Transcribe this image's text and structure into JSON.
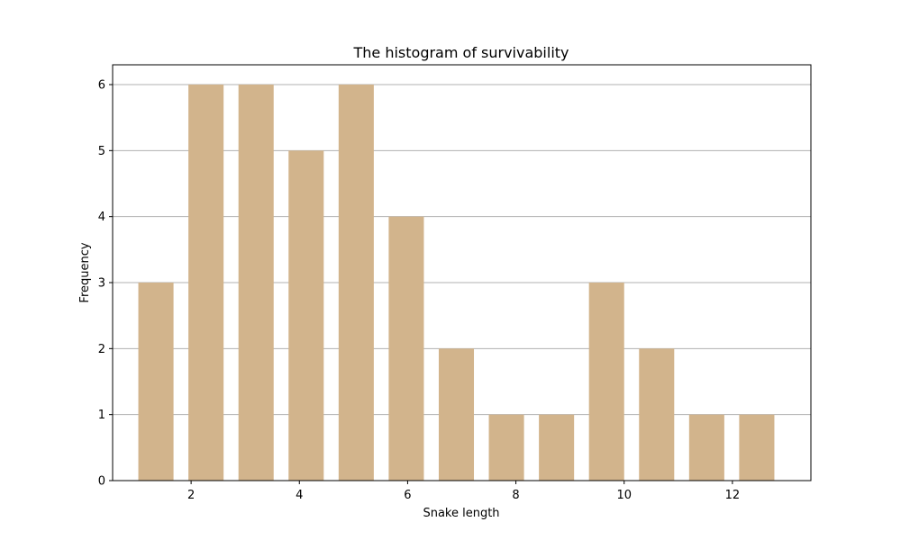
{
  "chart_data": {
    "type": "bar",
    "title": "The histogram of survivability",
    "xlabel": "Snake length",
    "ylabel": "Frequency",
    "x": [
      1.35,
      2.275,
      3.2,
      4.125,
      5.05,
      5.975,
      6.9,
      7.825,
      8.75,
      9.675,
      10.6,
      11.525,
      12.45
    ],
    "values": [
      3,
      6,
      6,
      5,
      6,
      4,
      2,
      1,
      1,
      3,
      2,
      1,
      1
    ],
    "bar_width_data": 0.65,
    "xlim": [
      0.55,
      13.45
    ],
    "ylim": [
      0,
      6.3
    ],
    "xticks": [
      2,
      4,
      6,
      8,
      10,
      12
    ],
    "yticks": [
      0,
      1,
      2,
      3,
      4,
      5,
      6
    ],
    "grid": {
      "x": false,
      "y": true
    },
    "bar_color": "#d2b48c",
    "grid_color": "#b0b0b0"
  }
}
